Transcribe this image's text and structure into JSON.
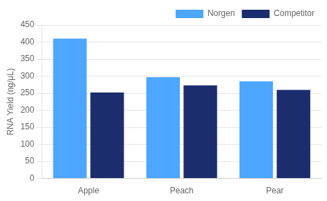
{
  "chart_data": {
    "type": "bar",
    "categories": [
      "Apple",
      "Peach",
      "Pear"
    ],
    "series": [
      {
        "name": "Norgen",
        "color": "#4DA6FF",
        "values": [
          410,
          297,
          285
        ]
      },
      {
        "name": "Competitor",
        "color": "#1C2D6E",
        "values": [
          252,
          273,
          260
        ]
      }
    ],
    "ylabel": "RNA Yield (ng/μL)",
    "ylim": [
      0,
      450
    ],
    "yticks": [
      0,
      50,
      100,
      150,
      200,
      250,
      300,
      350,
      400,
      450
    ],
    "grid": true,
    "legend": "upper right"
  }
}
